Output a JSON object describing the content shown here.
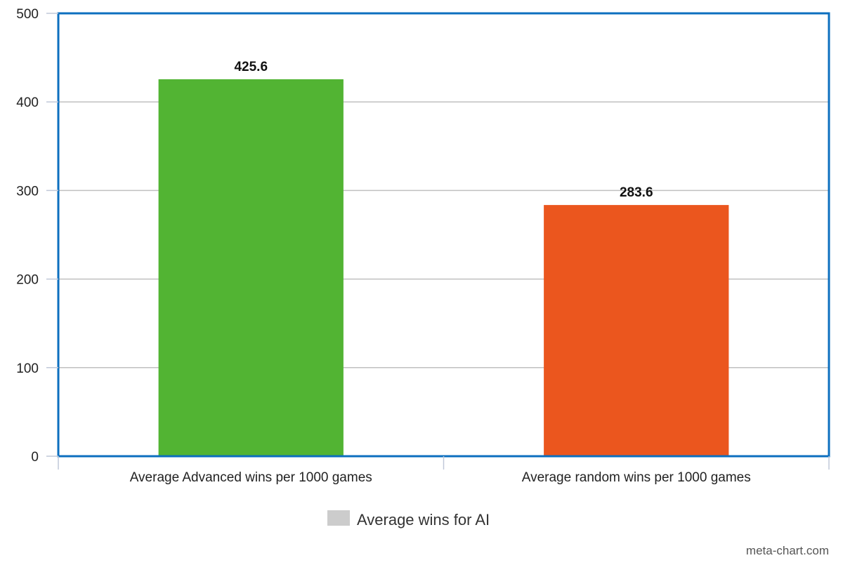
{
  "chart_data": {
    "type": "bar",
    "categories": [
      "Average Advanced wins per 1000 games",
      "Average random wins per 1000 games"
    ],
    "values": [
      425.6,
      283.6
    ],
    "value_labels": [
      "425.6",
      "283.6"
    ],
    "bar_colors": [
      "#52b433",
      "#eb561e"
    ],
    "series": [
      {
        "name": "Average wins for AI",
        "values": [
          425.6,
          283.6
        ],
        "legend_color": "#cccccc"
      }
    ],
    "ylim": [
      0,
      500
    ],
    "yticks": [
      0,
      100,
      200,
      300,
      400,
      500
    ],
    "ytick_labels": [
      "0",
      "100",
      "200",
      "300",
      "400",
      "500"
    ],
    "grid": true,
    "legend_position": "bottom-center",
    "plot_border_color": "#0c6fbf",
    "gridline_color": "#c0c0c0"
  },
  "watermark": "meta-chart.com"
}
